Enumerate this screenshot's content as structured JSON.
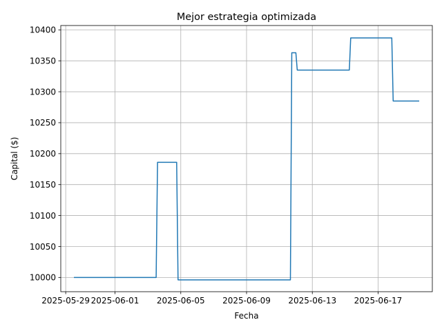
{
  "chart_data": {
    "type": "line",
    "title": "Mejor estrategia optimizada",
    "xlabel": "Fecha",
    "ylabel": "Capital ($)",
    "x_ticks": [
      "2025-05-29",
      "2025-06-01",
      "2025-06-05",
      "2025-06-09",
      "2025-06-13",
      "2025-06-17"
    ],
    "y_ticks": [
      10000,
      10050,
      10100,
      10150,
      10200,
      10250,
      10300,
      10350,
      10400
    ],
    "xlim": [
      "2025-05-28T16:48",
      "2025-06-20T07:12"
    ],
    "ylim": [
      9977,
      10407
    ],
    "grid": true,
    "color": "#1f77b4",
    "series": [
      {
        "x": [
          "2025-05-29T12:00",
          "2025-06-03T12:00",
          "2025-06-03T14:00",
          "2025-06-04T18:00",
          "2025-06-04T20:00",
          "2025-06-11T16:00",
          "2025-06-11T18:00",
          "2025-06-12T00:00",
          "2025-06-12T02:00",
          "2025-06-15T06:00",
          "2025-06-15T08:00",
          "2025-06-17T20:00",
          "2025-06-17T22:00",
          "2025-06-19T12:00"
        ],
        "y": [
          10000,
          10000,
          10186,
          10186,
          9996,
          9996,
          10363,
          10363,
          10335,
          10335,
          10387,
          10387,
          10285,
          10285
        ]
      }
    ]
  }
}
